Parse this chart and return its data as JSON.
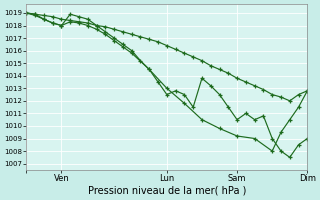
{
  "xlabel": "Pression niveau de la mer( hPa )",
  "ylim": [
    1006.5,
    1019.7
  ],
  "yticks": [
    1007,
    1008,
    1009,
    1010,
    1011,
    1012,
    1013,
    1014,
    1015,
    1016,
    1017,
    1018,
    1019
  ],
  "xlim": [
    0,
    192
  ],
  "xtick_positions": [
    0,
    24,
    96,
    144,
    192
  ],
  "xtick_labels": [
    "",
    "Ven",
    "Lun",
    "Sam",
    "Dim"
  ],
  "bg_color": "#c8ede8",
  "grid_color": "#aadddd",
  "plot_bg": "#d8f4f0",
  "line_color": "#1e6b1e",
  "line1_x": [
    0,
    6,
    12,
    18,
    24,
    30,
    36,
    42,
    48,
    54,
    60,
    66,
    72,
    78,
    84,
    90,
    96,
    102,
    108,
    114,
    120,
    126,
    132,
    138,
    144,
    150,
    156,
    162,
    168,
    174,
    180,
    186,
    192
  ],
  "line1_y": [
    1019.0,
    1018.9,
    1018.8,
    1018.7,
    1018.5,
    1018.4,
    1018.3,
    1018.2,
    1018.0,
    1017.9,
    1017.7,
    1017.5,
    1017.3,
    1017.1,
    1016.9,
    1016.7,
    1016.4,
    1016.1,
    1015.8,
    1015.5,
    1015.2,
    1014.8,
    1014.5,
    1014.2,
    1013.8,
    1013.5,
    1013.2,
    1012.9,
    1012.5,
    1012.3,
    1012.0,
    1012.5,
    1012.8
  ],
  "line2_x": [
    0,
    6,
    12,
    18,
    24,
    30,
    36,
    42,
    48,
    54,
    60,
    66,
    72,
    78,
    84,
    90,
    96,
    102,
    108,
    114,
    120,
    126,
    132,
    138,
    144,
    150,
    156,
    162,
    168,
    174,
    180,
    186,
    192
  ],
  "line2_y": [
    1019.0,
    1018.9,
    1018.5,
    1018.2,
    1018.0,
    1018.9,
    1018.7,
    1018.5,
    1018.0,
    1017.5,
    1017.0,
    1016.5,
    1016.0,
    1015.2,
    1014.5,
    1013.5,
    1012.5,
    1012.8,
    1012.5,
    1011.5,
    1013.8,
    1013.2,
    1012.5,
    1011.5,
    1010.5,
    1011.0,
    1010.5,
    1010.8,
    1009.0,
    1008.0,
    1007.5,
    1008.5,
    1009.0
  ],
  "line3_x": [
    0,
    6,
    12,
    18,
    24,
    30,
    36,
    42,
    48,
    54,
    60,
    66,
    72,
    84,
    96,
    108,
    120,
    132,
    144,
    156,
    168,
    174,
    180,
    186,
    192
  ],
  "line3_y": [
    1019.0,
    1018.8,
    1018.5,
    1018.2,
    1018.0,
    1018.3,
    1018.2,
    1018.0,
    1017.7,
    1017.3,
    1016.8,
    1016.3,
    1015.8,
    1014.5,
    1013.0,
    1011.8,
    1010.5,
    1009.8,
    1009.2,
    1009.0,
    1008.0,
    1009.5,
    1010.5,
    1011.5,
    1012.8
  ]
}
